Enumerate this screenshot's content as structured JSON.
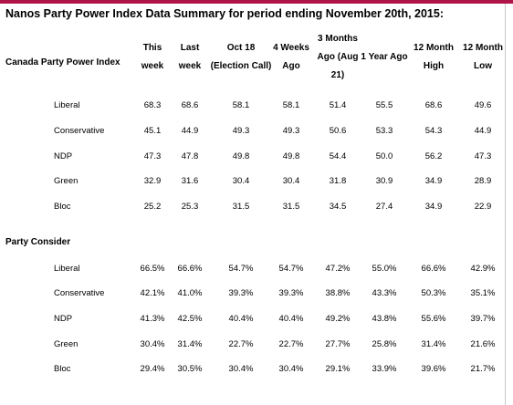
{
  "title": "Nanos Party Power Index Data Summary for period ending November 20th, 2015:",
  "index_header": "Canada Party Power Index",
  "columns": [
    [
      "This",
      "week"
    ],
    [
      "Last",
      "week"
    ],
    [
      "Oct 18",
      "(Election Call)"
    ],
    [
      "4 Weeks",
      "Ago"
    ],
    [
      "3 Months",
      "Ago (Aug",
      "21)"
    ],
    [
      "1 Year Ago"
    ],
    [
      "12 Month",
      "High"
    ],
    [
      "12 Month",
      "Low"
    ]
  ],
  "power_index": [
    {
      "label": "Liberal",
      "values": [
        "68.3",
        "68.6",
        "58.1",
        "58.1",
        "51.4",
        "55.5",
        "68.6",
        "49.6"
      ]
    },
    {
      "label": "Conservative",
      "values": [
        "45.1",
        "44.9",
        "49.3",
        "49.3",
        "50.6",
        "53.3",
        "54.3",
        "44.9"
      ]
    },
    {
      "label": "NDP",
      "values": [
        "47.3",
        "47.8",
        "49.8",
        "49.8",
        "54.4",
        "50.0",
        "56.2",
        "47.3"
      ]
    },
    {
      "label": "Green",
      "values": [
        "32.9",
        "31.6",
        "30.4",
        "30.4",
        "31.8",
        "30.9",
        "34.9",
        "28.9"
      ]
    },
    {
      "label": "Bloc",
      "values": [
        "25.2",
        "25.3",
        "31.5",
        "31.5",
        "34.5",
        "27.4",
        "34.9",
        "22.9"
      ]
    }
  ],
  "party_consider_title": "Party Consider",
  "party_consider": [
    {
      "label": "Liberal",
      "values": [
        "66.5%",
        "66.6%",
        "54.7%",
        "54.7%",
        "47.2%",
        "55.0%",
        "66.6%",
        "42.9%"
      ]
    },
    {
      "label": "Conservative",
      "values": [
        "42.1%",
        "41.0%",
        "39.3%",
        "39.3%",
        "38.8%",
        "43.3%",
        "50.3%",
        "35.1%"
      ]
    },
    {
      "label": "NDP",
      "values": [
        "41.3%",
        "42.5%",
        "40.4%",
        "40.4%",
        "49.2%",
        "43.8%",
        "55.6%",
        "39.7%"
      ]
    },
    {
      "label": "Green",
      "values": [
        "30.4%",
        "31.4%",
        "22.7%",
        "22.7%",
        "27.7%",
        "25.8%",
        "31.4%",
        "21.6%"
      ]
    },
    {
      "label": "Bloc",
      "values": [
        "29.4%",
        "30.5%",
        "30.4%",
        "30.4%",
        "29.1%",
        "33.9%",
        "39.6%",
        "21.7%"
      ]
    }
  ],
  "accent_color": "#b0154a"
}
